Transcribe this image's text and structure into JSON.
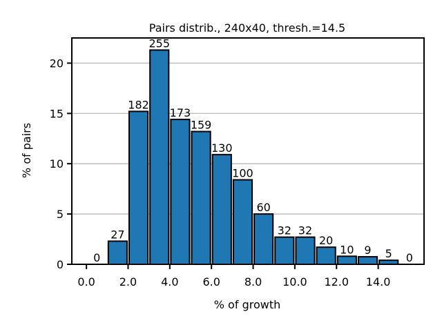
{
  "chart_data": {
    "type": "bar",
    "title": "Pairs distrib., 240x40, thresh.=14.5",
    "xlabel": "% of growth",
    "ylabel": "% of pairs",
    "xlim": [
      -0.7,
      16.2
    ],
    "ylim": [
      0,
      22.5
    ],
    "bar_width": 0.9,
    "x": [
      0.5,
      1.5,
      2.5,
      3.5,
      4.5,
      5.5,
      6.5,
      7.5,
      8.5,
      9.5,
      10.5,
      11.5,
      12.5,
      13.5,
      14.5,
      15.5
    ],
    "values": [
      0.0,
      2.3,
      15.2,
      21.3,
      14.4,
      13.2,
      10.9,
      8.4,
      5.0,
      2.7,
      2.7,
      1.7,
      0.8,
      0.75,
      0.4,
      0.0
    ],
    "bar_labels": [
      "0",
      "27",
      "182",
      "255",
      "173",
      "159",
      "130",
      "100",
      "60",
      "32",
      "32",
      "20",
      "10",
      "9",
      "5",
      "0"
    ],
    "xticks": [
      0,
      2,
      4,
      6,
      8,
      10,
      12,
      14
    ],
    "xtick_labels": [
      "0.0",
      "2.0",
      "4.0",
      "6.0",
      "8.0",
      "10.0",
      "12.0",
      "14.0"
    ],
    "yticks": [
      0,
      5,
      10,
      15,
      20
    ],
    "ytick_labels": [
      "0",
      "5",
      "10",
      "15",
      "20"
    ],
    "grid": "y",
    "colors": {
      "bar": "#1f77b4",
      "edge": "#000000",
      "grid": "#b0b0b0"
    }
  }
}
